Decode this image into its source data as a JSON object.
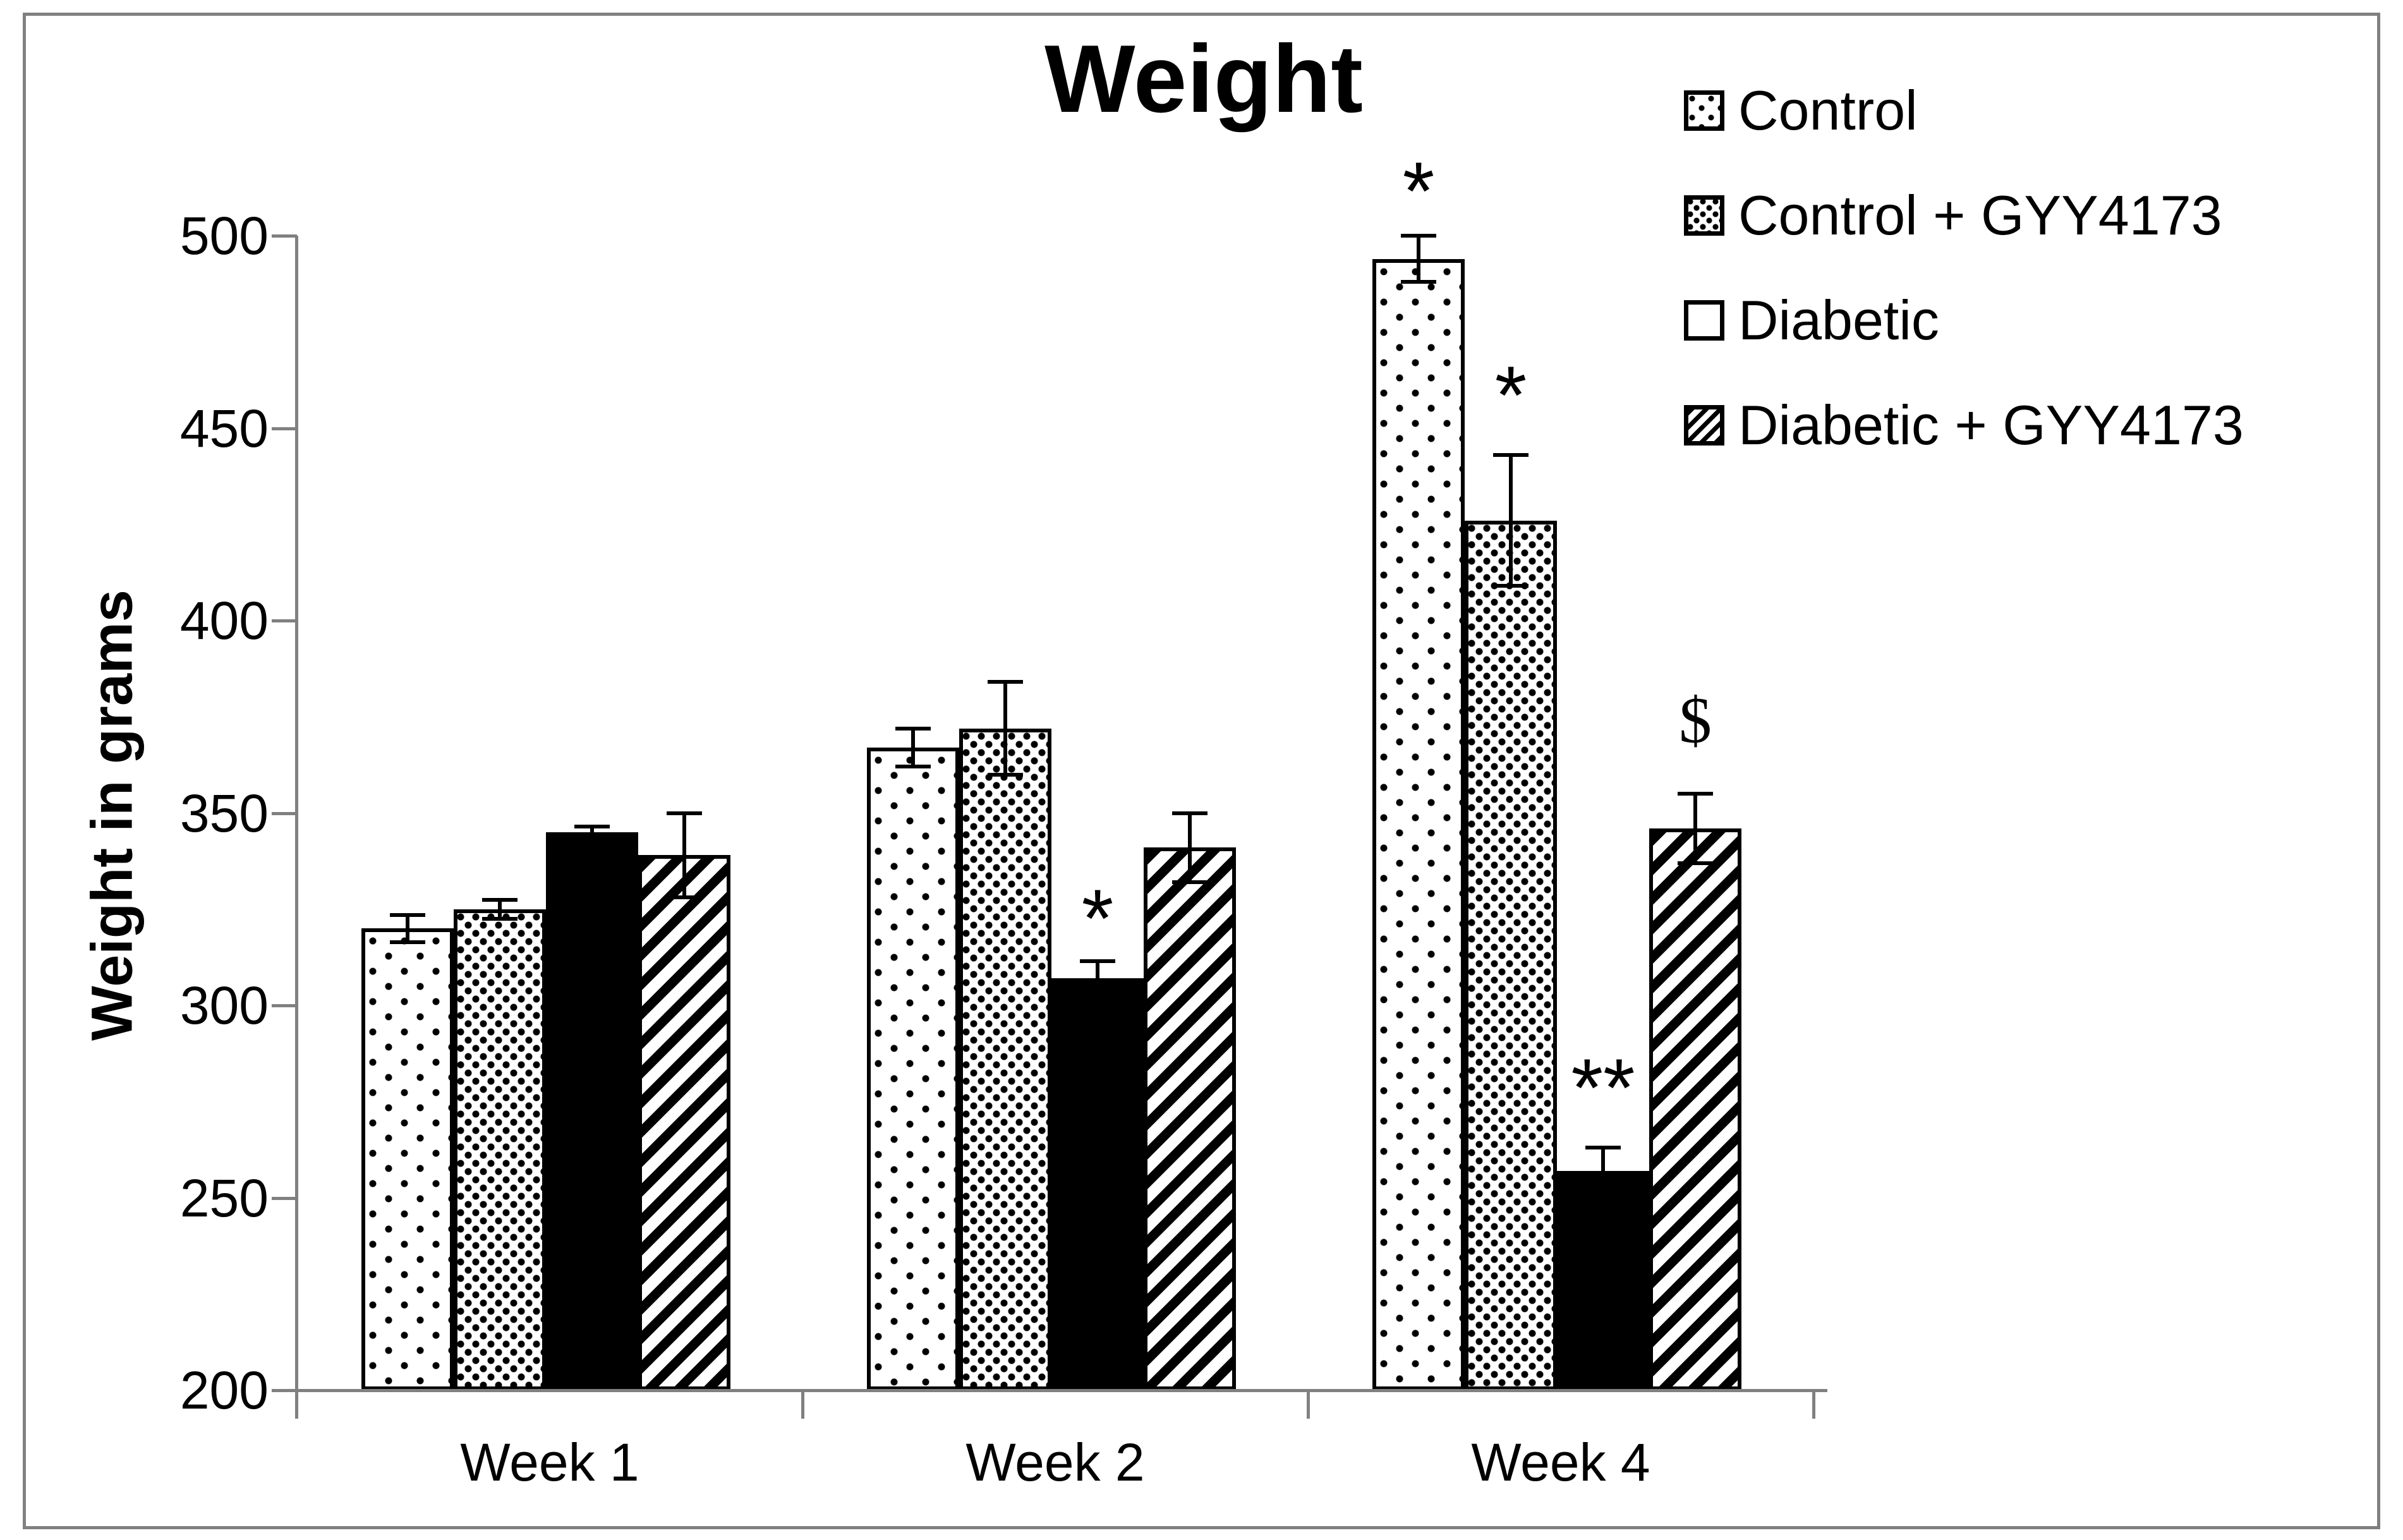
{
  "figure": {
    "title": "Weight",
    "y_axis_label": "Weight in grams"
  },
  "legend": {
    "items": [
      {
        "label": "Control",
        "pattern": "dots-sparse"
      },
      {
        "label": "Control + GYY4173",
        "pattern": "dots-dense"
      },
      {
        "label": "Diabetic",
        "pattern": "solid"
      },
      {
        "label": "Diabetic + GYY4173",
        "pattern": "hatch"
      }
    ]
  },
  "chart_data": {
    "type": "bar",
    "title": "Weight",
    "xlabel": "",
    "ylabel": "Weight in grams",
    "ylim": [
      200,
      500
    ],
    "yticks": [
      200,
      250,
      300,
      350,
      400,
      450,
      500
    ],
    "grid": false,
    "legend_position": "upper right",
    "categories": [
      "Week 1",
      "Week 2",
      "Week 4"
    ],
    "series": [
      {
        "name": "Control",
        "pattern": "dots-sparse",
        "values": [
          320,
          367,
          494
        ],
        "errors": [
          3.5,
          5,
          6
        ]
      },
      {
        "name": "Control + GYY4173",
        "pattern": "dots-dense",
        "values": [
          325,
          372,
          426
        ],
        "errors": [
          2.5,
          12,
          17
        ]
      },
      {
        "name": "Diabetic",
        "pattern": "solid",
        "values": [
          345,
          307,
          257
        ],
        "errors": [
          1.5,
          4.5,
          6
        ]
      },
      {
        "name": "Diabetic + GYY4173",
        "pattern": "hatch",
        "values": [
          339,
          341,
          346
        ],
        "errors": [
          11,
          9,
          9
        ]
      }
    ],
    "annotations": [
      {
        "category": "Week 2",
        "series": "Diabetic",
        "text": "*",
        "y_value": 328
      },
      {
        "category": "Week 4",
        "series": "Control",
        "text": "*",
        "y_value": 517
      },
      {
        "category": "Week 4",
        "series": "Control + GYY4173",
        "text": "*",
        "y_value": 464
      },
      {
        "category": "Week 4",
        "series": "Diabetic",
        "text": "**",
        "y_value": 284
      },
      {
        "category": "Week 4",
        "series": "Diabetic + GYY4173",
        "text": "$",
        "y_value": 374
      }
    ],
    "colors": {
      "ink": "#000000",
      "axis": "#808080",
      "background": "#ffffff"
    }
  }
}
